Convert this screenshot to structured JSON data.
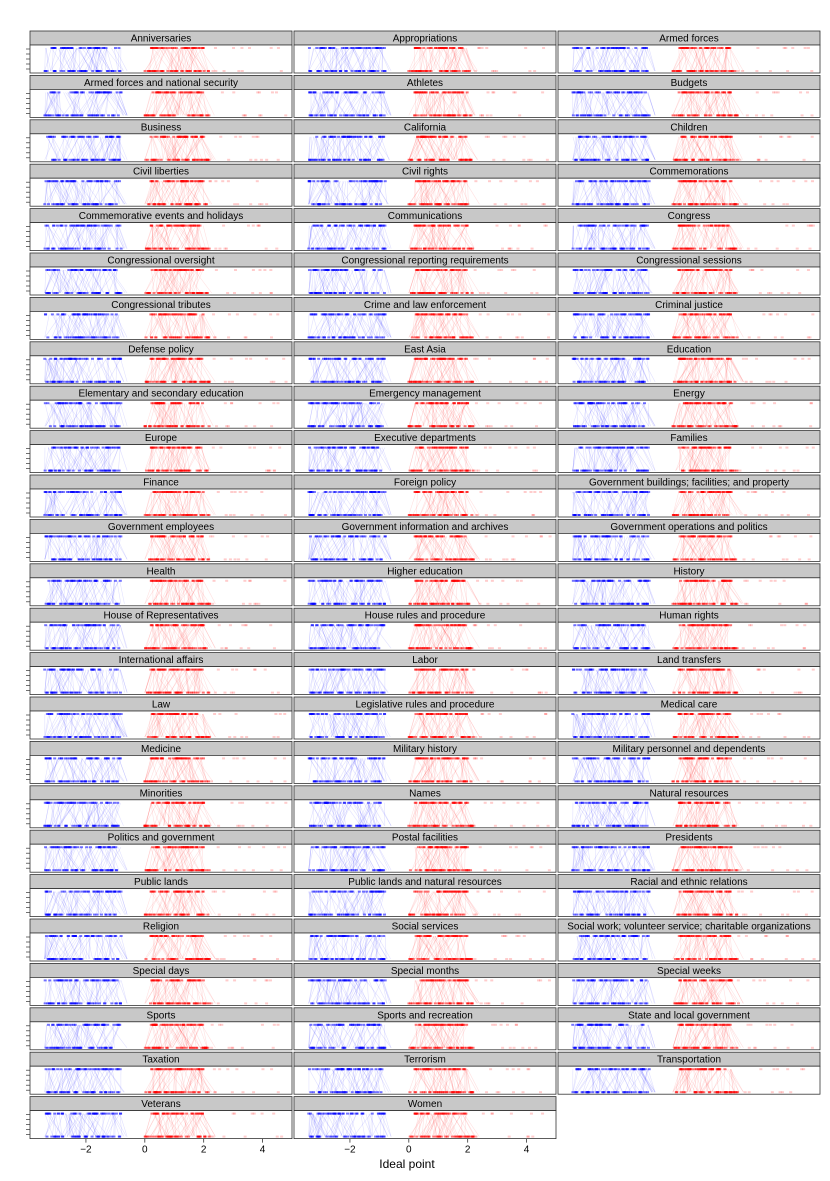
{
  "chart_data": {
    "type": "scatter",
    "title": "",
    "xlabel": "Ideal point",
    "ylabel": "",
    "xlim": [
      -3.9,
      5.0
    ],
    "x_ticks": [
      -2,
      0,
      2,
      4
    ],
    "x_tick_labels": [
      "−2",
      "0",
      "2",
      "4"
    ],
    "grid": false,
    "legend": "none",
    "layout": "small multiples, 3 columns",
    "colors": {
      "party_a": "#0000ff",
      "party_b": "#ff0000",
      "strip_fill": "#c8c8c8",
      "border": "#333333"
    },
    "panels": [
      "Anniversaries",
      "Appropriations",
      "Armed forces",
      "Armed forces and national security",
      "Athletes",
      "Budgets",
      "Business",
      "California",
      "Children",
      "Civil liberties",
      "Civil rights",
      "Commemorations",
      "Commemorative events and holidays",
      "Communications",
      "Congress",
      "Congressional oversight",
      "Congressional reporting requirements",
      "Congressional sessions",
      "Congressional tributes",
      "Crime and law enforcement",
      "Criminal justice",
      "Defense policy",
      "East Asia",
      "Education",
      "Elementary and secondary education",
      "Emergency management",
      "Energy",
      "Europe",
      "Executive departments",
      "Families",
      "Finance",
      "Foreign policy",
      "Government buildings; facilities; and property",
      "Government employees",
      "Government information and archives",
      "Government operations and politics",
      "Health",
      "Higher education",
      "History",
      "House of Representatives",
      "House rules and procedure",
      "Human rights",
      "International affairs",
      "Labor",
      "Land transfers",
      "Law",
      "Legislative rules and procedure",
      "Medical care",
      "Medicine",
      "Military history",
      "Military personnel and dependents",
      "Minorities",
      "Names",
      "Natural resources",
      "Politics and government",
      "Postal facilities",
      "Presidents",
      "Public lands",
      "Public lands and natural resources",
      "Racial and ethnic relations",
      "Religion",
      "Social services",
      "Social work; volunteer service; charitable organizations",
      "Special days",
      "Special months",
      "Special weeks",
      "Sports",
      "Sports and recreation",
      "State and local government",
      "Taxation",
      "Terrorism",
      "Transportation",
      "Veterans",
      "Women"
    ],
    "series": [
      {
        "name": "",
        "x_range_top": [
          -3.4,
          -0.8
        ],
        "x_range_bottom": [
          -3.4,
          -0.8
        ],
        "color": "#0000ff"
      },
      {
        "name": "",
        "x_range_top": [
          0.2,
          2.0
        ],
        "x_range_bottom": [
          0.0,
          2.2
        ],
        "color": "#ff0000"
      }
    ]
  }
}
